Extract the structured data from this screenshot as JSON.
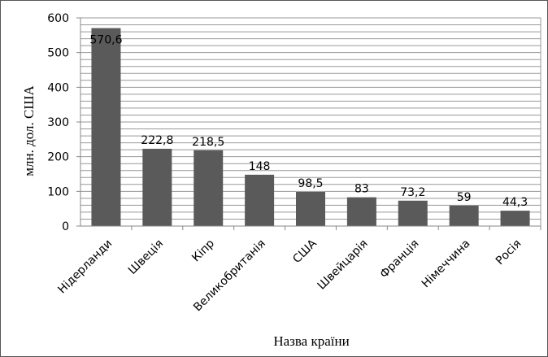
{
  "chart_data": {
    "type": "bar",
    "title": "",
    "xlabel": "Назва країни",
    "ylabel": "млн. дол. США",
    "categories": [
      "Нідерланди",
      "Швеція",
      "Кіпр",
      "Великобританія",
      "США",
      "Швейцарія",
      "Франція",
      "Німеччина",
      "Росія"
    ],
    "values": [
      570.6,
      222.8,
      218.5,
      148,
      98.5,
      83,
      73.2,
      59,
      44.3
    ],
    "data_labels": [
      "570,6",
      "222,8",
      "218,5",
      "148",
      "98,5",
      "83",
      "73,2",
      "59",
      "44,3"
    ],
    "yticks": [
      "0",
      "100",
      "200",
      "300",
      "400",
      "500",
      "600"
    ],
    "ylim": [
      0,
      600
    ],
    "grid": true,
    "legend": "none",
    "bar_color": "#5a5a5a",
    "grid_color": "#999999"
  }
}
